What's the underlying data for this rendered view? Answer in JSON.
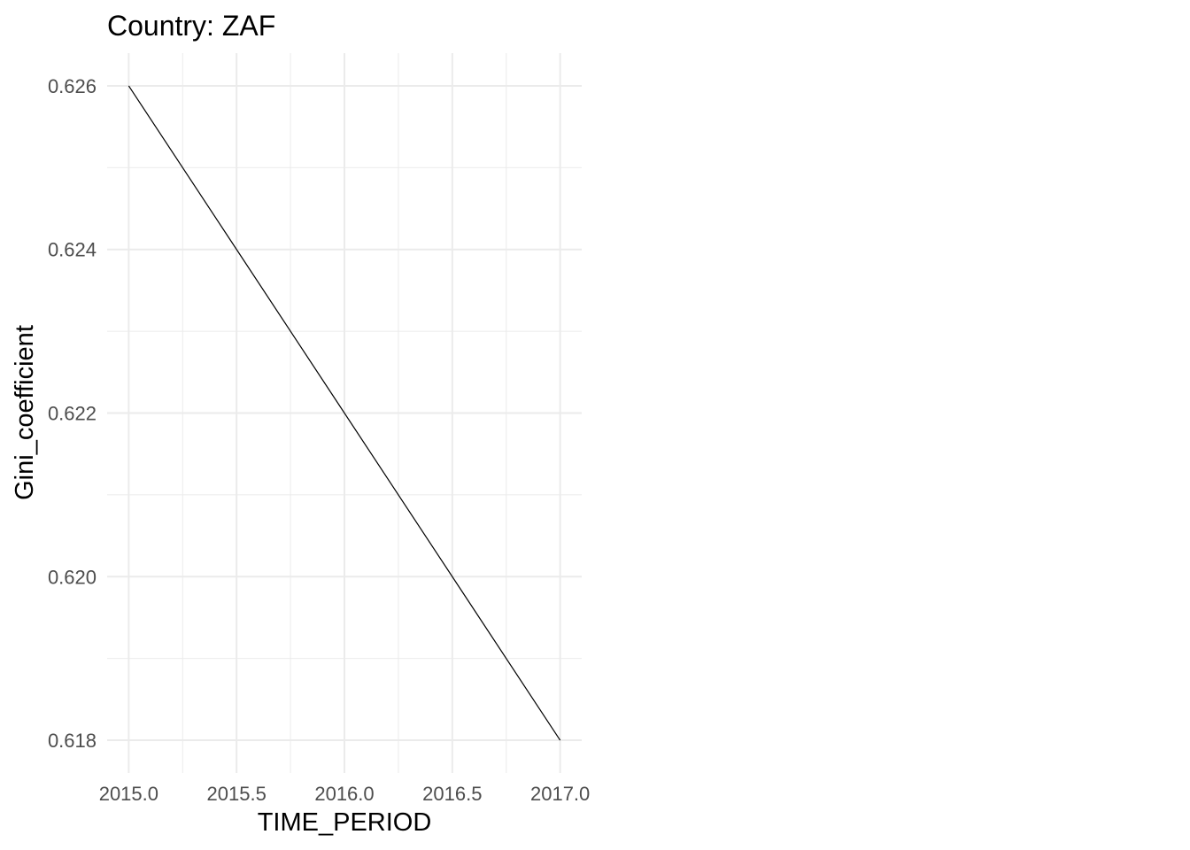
{
  "chart_data": {
    "type": "line",
    "title": "Country: ZAF",
    "xlabel": "TIME_PERIOD",
    "ylabel": "Gini_coefficient",
    "xlim": [
      2014.9,
      2017.1
    ],
    "ylim": [
      0.6176,
      0.6264
    ],
    "x_ticks": [
      2015.0,
      2015.5,
      2016.0,
      2016.5,
      2017.0
    ],
    "x_tick_labels": [
      "2015.0",
      "2015.5",
      "2016.0",
      "2016.5",
      "2017.0"
    ],
    "x_minor_ticks": [
      2015.25,
      2015.75,
      2016.25,
      2016.75
    ],
    "y_ticks": [
      0.618,
      0.62,
      0.622,
      0.624,
      0.626
    ],
    "y_tick_labels": [
      "0.618",
      "0.620",
      "0.622",
      "0.624",
      "0.626"
    ],
    "y_minor_ticks": [
      0.619,
      0.621,
      0.623,
      0.625
    ],
    "grid": true,
    "legend": "none",
    "line_color": "#000000",
    "grid_color": "#ebebeb",
    "series": [
      {
        "x": [
          2015,
          2017
        ],
        "y": [
          0.626,
          0.618
        ]
      }
    ]
  }
}
